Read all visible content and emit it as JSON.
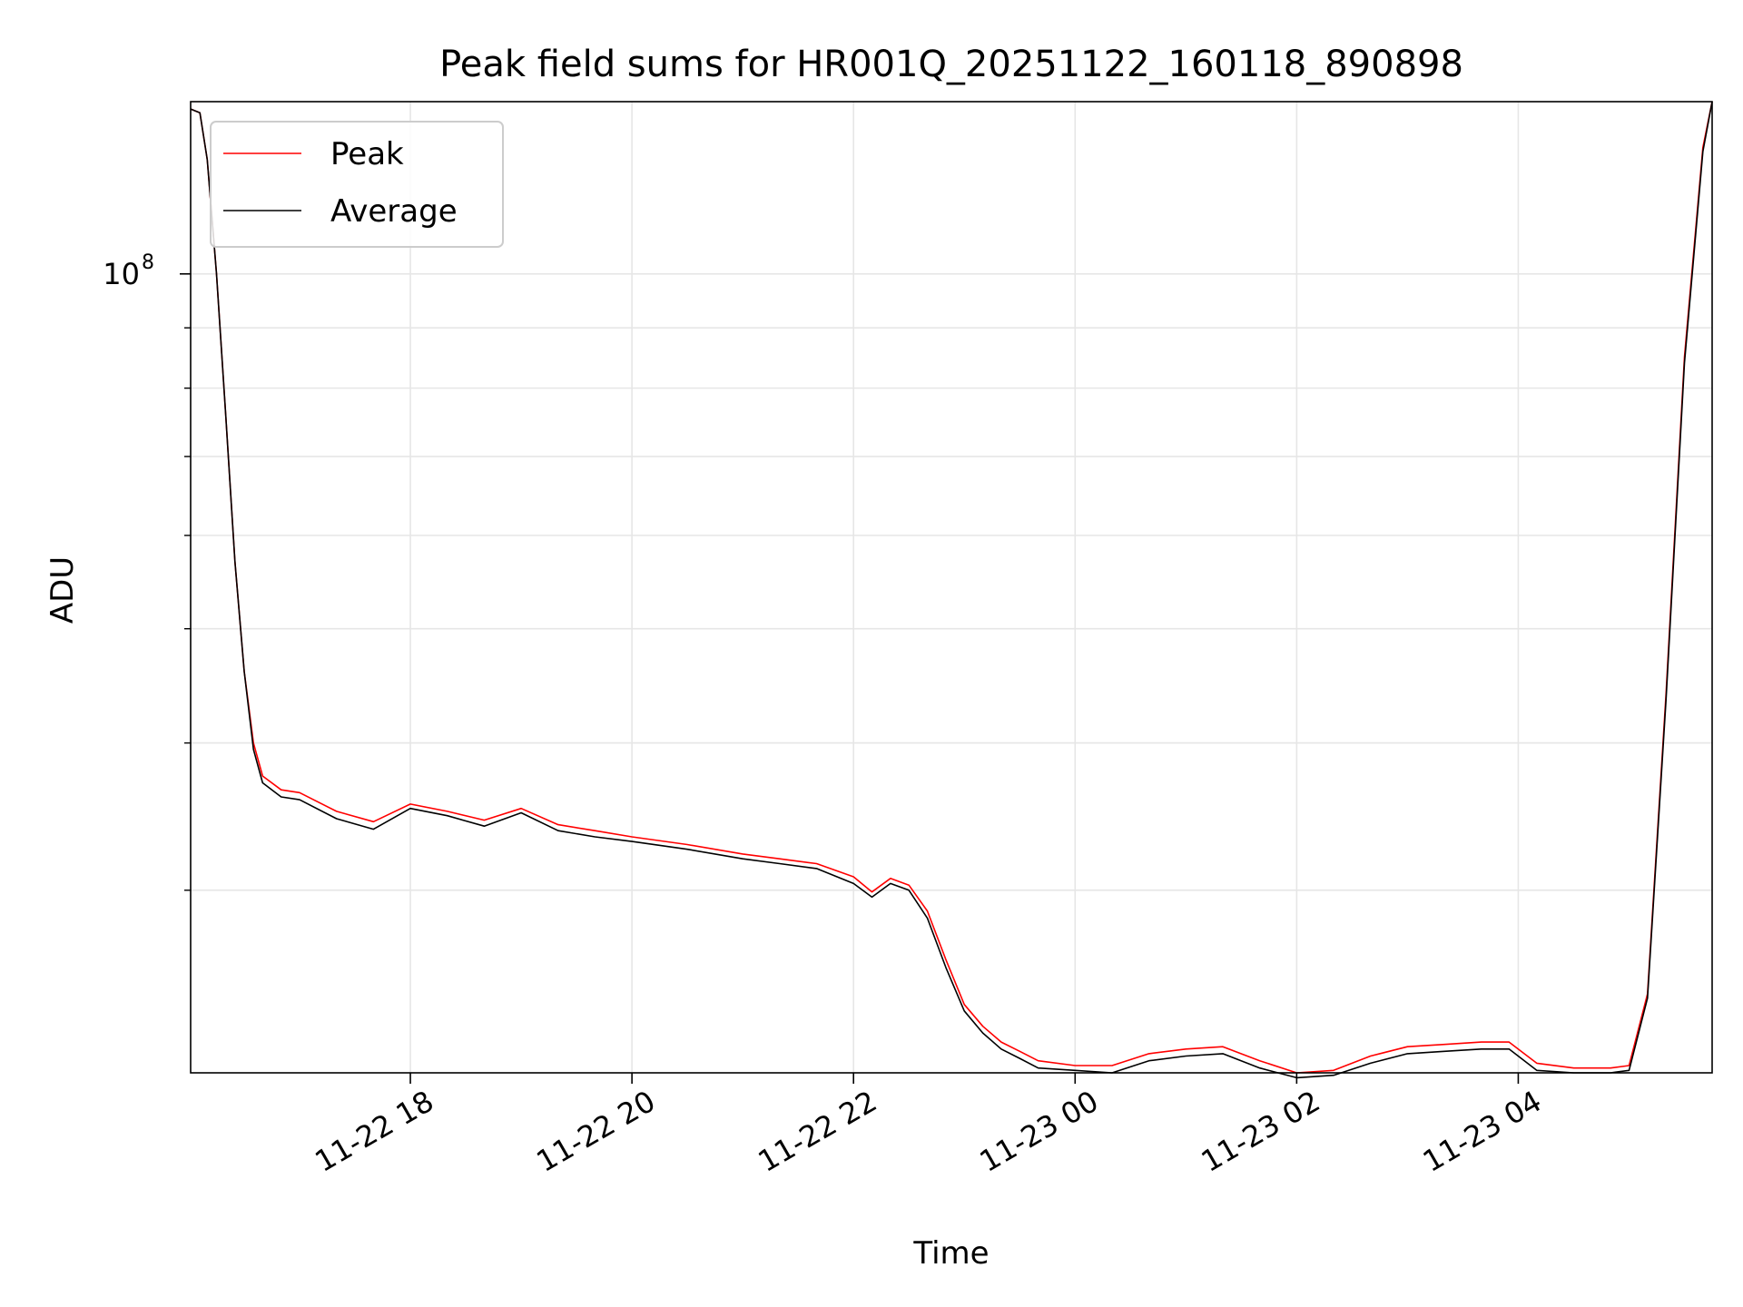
{
  "chart_data": {
    "type": "line",
    "title": "Peak field sums for HR001Q_20251122_160118_890898",
    "xlabel": "Time",
    "ylabel": "ADU",
    "yscale": "log",
    "ylim": [
      21000000,
      140000000
    ],
    "xlim": [
      "2025-11-22T16:01:00",
      "2025-11-23T05:45:00"
    ],
    "grid": true,
    "legend_position": "top-left",
    "x_ticks": [
      {
        "value": "2025-11-22T18:00:00",
        "label": "11-22 18"
      },
      {
        "value": "2025-11-22T20:00:00",
        "label": "11-22 20"
      },
      {
        "value": "2025-11-22T22:00:00",
        "label": "11-22 22"
      },
      {
        "value": "2025-11-23T00:00:00",
        "label": "11-23 00"
      },
      {
        "value": "2025-11-23T02:00:00",
        "label": "11-23 02"
      },
      {
        "value": "2025-11-23T04:00:00",
        "label": "11-23 04"
      }
    ],
    "y_major_tick": {
      "value": 100000000,
      "label_base": "10",
      "label_exp": "8"
    },
    "y_minor_ticks": [
      30000000,
      40000000,
      50000000,
      60000000,
      70000000,
      80000000,
      90000000
    ],
    "series": [
      {
        "name": "Peak",
        "color": "#ff0000",
        "x": [
          "2025-11-22T16:01:00",
          "2025-11-22T16:06:00",
          "2025-11-22T16:10:00",
          "2025-11-22T16:15:00",
          "2025-11-22T16:20:00",
          "2025-11-22T16:25:00",
          "2025-11-22T16:30:00",
          "2025-11-22T16:35:00",
          "2025-11-22T16:40:00",
          "2025-11-22T16:50:00",
          "2025-11-22T17:00:00",
          "2025-11-22T17:20:00",
          "2025-11-22T17:40:00",
          "2025-11-22T18:00:00",
          "2025-11-22T18:20:00",
          "2025-11-22T18:40:00",
          "2025-11-22T19:00:00",
          "2025-11-22T19:20:00",
          "2025-11-22T19:40:00",
          "2025-11-22T20:00:00",
          "2025-11-22T20:30:00",
          "2025-11-22T21:00:00",
          "2025-11-22T21:20:00",
          "2025-11-22T21:40:00",
          "2025-11-22T22:00:00",
          "2025-11-22T22:10:00",
          "2025-11-22T22:20:00",
          "2025-11-22T22:30:00",
          "2025-11-22T22:40:00",
          "2025-11-22T22:50:00",
          "2025-11-22T23:00:00",
          "2025-11-22T23:10:00",
          "2025-11-22T23:20:00",
          "2025-11-22T23:30:00",
          "2025-11-22T23:40:00",
          "2025-11-23T00:00:00",
          "2025-11-23T00:20:00",
          "2025-11-23T00:40:00",
          "2025-11-23T01:00:00",
          "2025-11-23T01:20:00",
          "2025-11-23T01:40:00",
          "2025-11-23T02:00:00",
          "2025-11-23T02:20:00",
          "2025-11-23T02:40:00",
          "2025-11-23T03:00:00",
          "2025-11-23T03:20:00",
          "2025-11-23T03:40:00",
          "2025-11-23T03:55:00",
          "2025-11-23T04:10:00",
          "2025-11-23T04:30:00",
          "2025-11-23T04:50:00",
          "2025-11-23T05:00:00",
          "2025-11-23T05:10:00",
          "2025-11-23T05:20:00",
          "2025-11-23T05:30:00",
          "2025-11-23T05:40:00",
          "2025-11-23T05:45:00"
        ],
        "y": [
          138000000,
          137000000,
          125000000,
          100000000,
          76000000,
          57000000,
          46000000,
          40000000,
          37500000,
          36500000,
          36300000,
          35000000,
          34300000,
          35500000,
          35000000,
          34400000,
          35200000,
          34100000,
          33700000,
          33300000,
          32800000,
          32200000,
          31900000,
          31600000,
          30800000,
          29900000,
          30700000,
          30300000,
          28800000,
          26200000,
          24000000,
          23000000,
          22300000,
          21900000,
          21500000,
          21300000,
          21300000,
          21800000,
          22000000,
          22100000,
          21500000,
          21000000,
          21100000,
          21700000,
          22100000,
          22200000,
          22300000,
          22300000,
          21400000,
          21200000,
          21200000,
          21300000,
          24500000,
          44000000,
          85000000,
          128000000,
          140000000
        ]
      },
      {
        "name": "Average",
        "color": "#000000",
        "x": [
          "2025-11-22T16:01:00",
          "2025-11-22T16:06:00",
          "2025-11-22T16:10:00",
          "2025-11-22T16:15:00",
          "2025-11-22T16:20:00",
          "2025-11-22T16:25:00",
          "2025-11-22T16:30:00",
          "2025-11-22T16:35:00",
          "2025-11-22T16:40:00",
          "2025-11-22T16:50:00",
          "2025-11-22T17:00:00",
          "2025-11-22T17:20:00",
          "2025-11-22T17:40:00",
          "2025-11-22T18:00:00",
          "2025-11-22T18:20:00",
          "2025-11-22T18:40:00",
          "2025-11-22T19:00:00",
          "2025-11-22T19:20:00",
          "2025-11-22T19:40:00",
          "2025-11-22T20:00:00",
          "2025-11-22T20:30:00",
          "2025-11-22T21:00:00",
          "2025-11-22T21:20:00",
          "2025-11-22T21:40:00",
          "2025-11-22T22:00:00",
          "2025-11-22T22:10:00",
          "2025-11-22T22:20:00",
          "2025-11-22T22:30:00",
          "2025-11-22T22:40:00",
          "2025-11-22T22:50:00",
          "2025-11-22T23:00:00",
          "2025-11-22T23:10:00",
          "2025-11-22T23:20:00",
          "2025-11-22T23:30:00",
          "2025-11-22T23:40:00",
          "2025-11-23T00:00:00",
          "2025-11-23T00:20:00",
          "2025-11-23T00:40:00",
          "2025-11-23T01:00:00",
          "2025-11-23T01:20:00",
          "2025-11-23T01:40:00",
          "2025-11-23T02:00:00",
          "2025-11-23T02:20:00",
          "2025-11-23T02:40:00",
          "2025-11-23T03:00:00",
          "2025-11-23T03:20:00",
          "2025-11-23T03:40:00",
          "2025-11-23T03:55:00",
          "2025-11-23T04:10:00",
          "2025-11-23T04:30:00",
          "2025-11-23T04:50:00",
          "2025-11-23T05:00:00",
          "2025-11-23T05:10:00",
          "2025-11-23T05:20:00",
          "2025-11-23T05:30:00",
          "2025-11-23T05:40:00",
          "2025-11-23T05:45:00"
        ],
        "y": [
          138000000,
          137000000,
          125000000,
          100000000,
          76000000,
          57000000,
          46000000,
          39500000,
          37000000,
          36000000,
          35800000,
          34500000,
          33800000,
          35200000,
          34700000,
          34000000,
          34900000,
          33700000,
          33300000,
          33000000,
          32500000,
          31900000,
          31600000,
          31300000,
          30400000,
          29600000,
          30400000,
          30000000,
          28400000,
          25800000,
          23700000,
          22700000,
          22000000,
          21600000,
          21200000,
          21100000,
          21000000,
          21500000,
          21700000,
          21800000,
          21200000,
          20800000,
          20900000,
          21400000,
          21800000,
          21900000,
          22000000,
          22000000,
          21100000,
          21000000,
          21000000,
          21100000,
          24300000,
          43500000,
          84000000,
          127000000,
          140000000
        ]
      }
    ]
  }
}
